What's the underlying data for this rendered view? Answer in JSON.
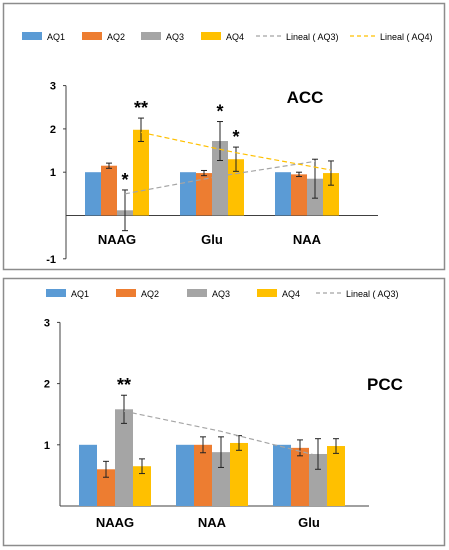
{
  "colors": {
    "AQ1": "#5b9bd5",
    "AQ2": "#ed7d31",
    "AQ3": "#a5a5a5",
    "AQ4": "#ffc000",
    "frame": "#8c8c8c",
    "axis": "#404040"
  },
  "chart_data": [
    {
      "type": "bar",
      "title": "ACC",
      "categories": [
        "NAAG",
        "Glu",
        "NAA"
      ],
      "ylim": [
        -1,
        3
      ],
      "yticks": [
        "3",
        "2",
        "1",
        "-1"
      ],
      "grid": false,
      "legend_position": "top",
      "series": [
        {
          "name": "AQ1",
          "values": [
            1.0,
            1.0,
            1.0
          ],
          "errors": [
            0.0,
            0.0,
            0.0
          ]
        },
        {
          "name": "AQ2",
          "values": [
            1.15,
            0.98,
            0.95
          ],
          "errors": [
            0.06,
            0.06,
            0.05
          ]
        },
        {
          "name": "AQ3",
          "values": [
            0.12,
            1.72,
            0.85
          ],
          "errors": [
            0.47,
            0.45,
            0.45
          ]
        },
        {
          "name": "AQ4",
          "values": [
            1.98,
            1.3,
            0.98
          ],
          "errors": [
            0.27,
            0.28,
            0.28
          ]
        }
      ],
      "trendlines": [
        {
          "name": "Lineal ( AQ3)",
          "series": "AQ3",
          "values": [
            0.5,
            0.91,
            1.25
          ]
        },
        {
          "name": "Lineal ( AQ4)",
          "series": "AQ4",
          "values": [
            1.92,
            1.45,
            1.05
          ]
        }
      ],
      "annotations": [
        {
          "text": "**",
          "category": "NAAG",
          "series": "AQ4"
        },
        {
          "text": "*",
          "category": "NAAG",
          "series": "AQ3"
        },
        {
          "text": "*",
          "category": "Glu",
          "series": "AQ3"
        },
        {
          "text": "*",
          "category": "Glu",
          "series": "AQ4"
        }
      ]
    },
    {
      "type": "bar",
      "title": "PCC",
      "categories": [
        "NAAG",
        "NAA",
        "Glu"
      ],
      "ylim": [
        0,
        3
      ],
      "yticks": [
        "3",
        "2",
        "1"
      ],
      "grid": false,
      "legend_position": "top",
      "series": [
        {
          "name": "AQ1",
          "values": [
            1.0,
            1.0,
            1.0
          ],
          "errors": [
            0.0,
            0.0,
            0.0
          ]
        },
        {
          "name": "AQ2",
          "values": [
            0.6,
            1.0,
            0.95
          ],
          "errors": [
            0.13,
            0.13,
            0.13
          ]
        },
        {
          "name": "AQ3",
          "values": [
            1.58,
            0.88,
            0.85
          ],
          "errors": [
            0.23,
            0.25,
            0.25
          ]
        },
        {
          "name": "AQ4",
          "values": [
            0.65,
            1.03,
            0.98
          ],
          "errors": [
            0.12,
            0.12,
            0.12
          ]
        }
      ],
      "trendlines": [
        {
          "name": "Lineal ( AQ3)",
          "series": "AQ3",
          "values": [
            1.55,
            1.22,
            0.82
          ]
        }
      ],
      "annotations": [
        {
          "text": "**",
          "category": "NAAG",
          "series": "AQ3"
        }
      ]
    }
  ]
}
